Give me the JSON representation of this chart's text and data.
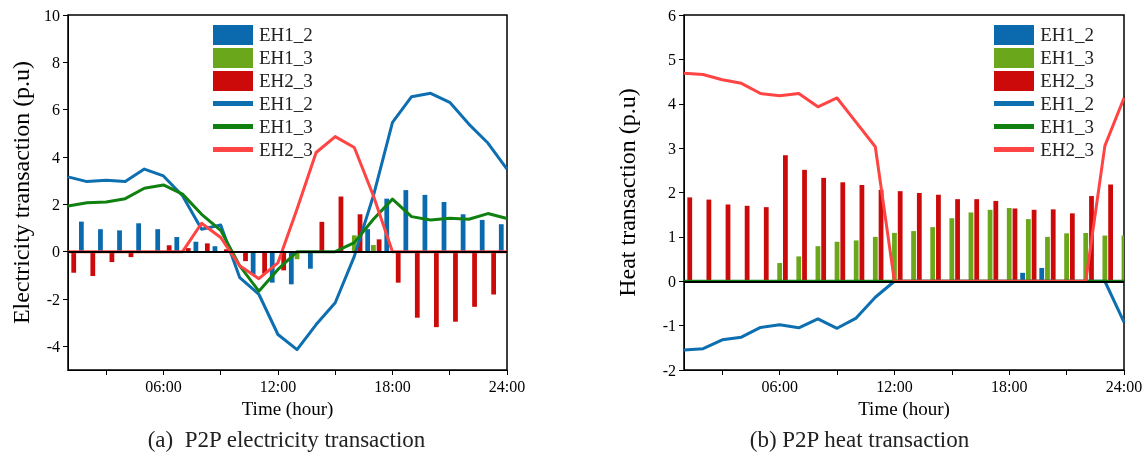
{
  "chart_data": [
    {
      "type": "bar",
      "title": "(a)  P2P electricity transaction",
      "xlabel": "Time (hour)",
      "ylabel": "Electricity transaction (p.u)",
      "x": [
        1,
        2,
        3,
        4,
        5,
        6,
        7,
        8,
        9,
        10,
        11,
        12,
        13,
        14,
        15,
        16,
        17,
        18,
        19,
        20,
        21,
        22,
        23,
        24
      ],
      "xlim": [
        1,
        24
      ],
      "xticks": [
        {
          "value": 3,
          "label": null
        },
        {
          "value": 6,
          "label": "06:00"
        },
        {
          "value": 9,
          "label": null
        },
        {
          "value": 12,
          "label": "12:00"
        },
        {
          "value": 15,
          "label": null
        },
        {
          "value": 18,
          "label": "18:00"
        },
        {
          "value": 21,
          "label": null
        },
        {
          "value": 24,
          "label": "24:00"
        }
      ],
      "ylim": [
        -5,
        10
      ],
      "yticks": [
        -4,
        -2,
        0,
        2,
        4,
        6,
        8,
        10
      ],
      "legend": "top",
      "marker": "none",
      "ref_lines": [
        {
          "axis": "y",
          "value": 0,
          "color": "#000000"
        }
      ],
      "series": [
        {
          "name": "EH1_2",
          "color": "#0a6aad",
          "x": [
            1.7,
            2.7,
            3.7,
            4.7,
            5.7,
            6.7,
            7.7,
            8.7,
            9.7,
            10.7,
            11.7,
            12.7,
            13.7,
            14.7,
            15.7,
            16.7,
            17.7,
            18.7,
            19.7,
            20.7,
            21.7,
            22.7,
            23.7
          ],
          "values": [
            1.27,
            0.95,
            0.9,
            1.2,
            0.95,
            0.62,
            0.42,
            0.23,
            0,
            -0.96,
            -1.31,
            -1.38,
            -0.72,
            0,
            0,
            0.95,
            2.24,
            2.6,
            2.4,
            2.1,
            1.58,
            1.34,
            1.16
          ]
        },
        {
          "name": "EH1_3",
          "color": "#6aa71a",
          "values": [
            0,
            0,
            0,
            0,
            0,
            0,
            0,
            0,
            0,
            0,
            0,
            null,
            -0.32,
            0,
            0,
            0.69,
            0.28,
            0,
            0,
            0,
            0,
            0,
            0,
            0
          ]
        },
        {
          "name": "EH2_3",
          "color": "#cc0a0a",
          "x": [
            1.3,
            2.3,
            3.3,
            4.3,
            5.3,
            6.3,
            7.3,
            8.3,
            9.3,
            10.3,
            11.3,
            12.3,
            13.3,
            14.3,
            15.3,
            16.3,
            17.3,
            18.3,
            19.3,
            20.3,
            21.3,
            22.3,
            23.3
          ],
          "values": [
            -0.89,
            -1.03,
            -0.44,
            -0.23,
            0,
            0.27,
            0.15,
            0.35,
            0.1,
            -0.4,
            -0.93,
            -0.79,
            0,
            1.26,
            2.33,
            1.58,
            0.52,
            -1.31,
            -2.79,
            -3.19,
            -2.96,
            -2.33,
            -1.81
          ]
        },
        {
          "name": "EH1_2",
          "type": "line",
          "color": "#0d6eb0",
          "values": [
            3.16,
            2.96,
            3.02,
            2.96,
            3.49,
            3.2,
            2.36,
            0.95,
            1.13,
            -1.1,
            -1.8,
            -3.5,
            -4.14,
            -3.08,
            -2.16,
            -0.2,
            2.36,
            5.46,
            6.55,
            6.69,
            6.31,
            5.39,
            4.59,
            3.49
          ]
        },
        {
          "name": "EH1_3",
          "type": "line",
          "color": "#108010",
          "values": [
            1.93,
            2.07,
            2.1,
            2.24,
            2.68,
            2.82,
            2.43,
            1.58,
            0.9,
            -0.6,
            -1.67,
            -0.75,
            0,
            0,
            0,
            0.38,
            1.37,
            2.22,
            1.48,
            1.34,
            1.41,
            1.37,
            1.61,
            1.4
          ]
        },
        {
          "name": "EH2_3",
          "type": "line",
          "color": "#ff4444",
          "values": [
            0,
            0,
            0,
            0,
            0,
            0,
            0,
            1.2,
            0.6,
            -0.6,
            -1.14,
            -0.47,
            1.8,
            4.19,
            4.86,
            4.4,
            2.36,
            0,
            0,
            0,
            0,
            0,
            0,
            0
          ]
        }
      ]
    },
    {
      "type": "bar",
      "title": "(b) P2P heat transaction",
      "xlabel": "Time (hour)",
      "ylabel": "Heat transaction (p.u)",
      "x": [
        1,
        2,
        3,
        4,
        5,
        6,
        7,
        8,
        9,
        10,
        11,
        12,
        13,
        14,
        15,
        16,
        17,
        18,
        19,
        20,
        21,
        22,
        23,
        24
      ],
      "xlim": [
        1,
        24
      ],
      "xticks": [
        {
          "value": 3,
          "label": null
        },
        {
          "value": 6,
          "label": "06:00"
        },
        {
          "value": 9,
          "label": null
        },
        {
          "value": 12,
          "label": "12:00"
        },
        {
          "value": 15,
          "label": null
        },
        {
          "value": 18,
          "label": "18:00"
        },
        {
          "value": 21,
          "label": null
        },
        {
          "value": 24,
          "label": "24:00"
        }
      ],
      "ylim": [
        -2,
        6
      ],
      "yticks": [
        -2,
        -1,
        0,
        1,
        2,
        3,
        4,
        5,
        6
      ],
      "legend": "top right",
      "marker": "none",
      "ref_lines": [
        {
          "axis": "y",
          "value": 0,
          "color": "#000000"
        }
      ],
      "series": [
        {
          "name": "EH1_2",
          "color": "#0a6aad",
          "x": [
            1.7,
            2.7,
            3.7,
            4.7,
            5.7,
            6.7,
            7.7,
            8.7,
            9.7,
            10.7,
            11.7,
            12.7,
            13.7,
            14.7,
            15.7,
            16.7,
            17.7,
            18.7,
            19.7,
            20.7,
            21.7,
            22.7,
            23.7
          ],
          "values": [
            0,
            0,
            0,
            0,
            0,
            0,
            0,
            0,
            0,
            0,
            0,
            0,
            0,
            0,
            0,
            0,
            null,
            0.19,
            0.3,
            0,
            0,
            0,
            0
          ]
        },
        {
          "name": "EH1_3",
          "color": "#6aa71a",
          "values": [
            0,
            0,
            0,
            0,
            0,
            0.41,
            0.56,
            0.79,
            0.89,
            0.92,
            1.0,
            1.09,
            1.13,
            1.22,
            1.42,
            1.55,
            1.61,
            1.65,
            1.4,
            1.0,
            1.08,
            1.09,
            1.03,
            1.03
          ]
        },
        {
          "name": "EH2_3",
          "color": "#cc0a0a",
          "x": [
            1.3,
            2.3,
            3.3,
            4.3,
            5.3,
            6.3,
            7.3,
            8.3,
            9.3,
            10.3,
            11.3,
            12.3,
            13.3,
            14.3,
            15.3,
            16.3,
            17.3,
            18.3,
            19.3,
            20.3,
            21.3,
            22.3,
            23.3
          ],
          "values": [
            1.89,
            1.84,
            1.73,
            1.7,
            1.67,
            2.84,
            2.51,
            2.33,
            2.23,
            2.17,
            2.06,
            2.03,
            1.99,
            1.95,
            1.85,
            1.85,
            1.81,
            1.64,
            1.61,
            1.62,
            1.53,
            1.92,
            2.18
          ]
        },
        {
          "name": "EH1_2",
          "type": "line",
          "color": "#0d6eb0",
          "values": [
            -1.55,
            -1.52,
            -1.32,
            -1.26,
            -1.04,
            -0.98,
            -1.05,
            -0.85,
            -1.06,
            -0.83,
            -0.36,
            0,
            0,
            0,
            0,
            0,
            0,
            0,
            0,
            0,
            0,
            0,
            0,
            -0.92
          ]
        },
        {
          "name": "EH1_3",
          "type": "line",
          "color": "#108010",
          "values": [
            0,
            0,
            0,
            0,
            0,
            0,
            0,
            0,
            0,
            0,
            0,
            0,
            0,
            0,
            0,
            0,
            0,
            0,
            0,
            0,
            0,
            0,
            0,
            0
          ]
        },
        {
          "name": "EH2_3",
          "type": "line",
          "color": "#ff4444",
          "values": [
            4.69,
            4.66,
            4.54,
            4.46,
            4.23,
            4.18,
            4.23,
            3.93,
            4.13,
            3.58,
            3.03,
            0,
            0,
            0,
            0,
            0,
            0,
            0,
            0,
            0,
            0,
            0,
            3.05,
            4.13
          ]
        }
      ]
    }
  ]
}
